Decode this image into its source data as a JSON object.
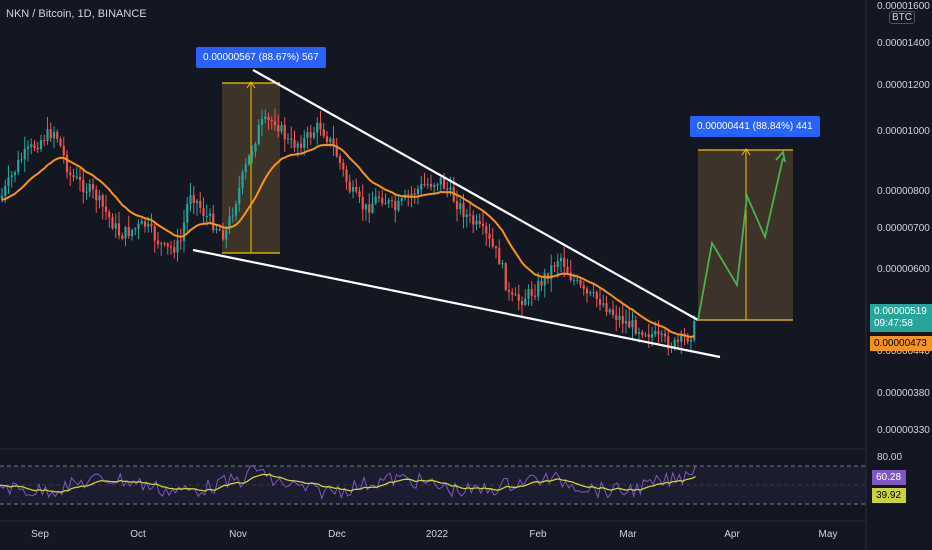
{
  "header": {
    "title": "NKN / Bitcoin, 1D, BINANCE",
    "unit_button": "BTC"
  },
  "price_axis": {
    "labels": [
      "0.00001600",
      "0.00001400",
      "0.00001200",
      "0.00001000",
      "0.00000800",
      "0.00000700",
      "0.00000600",
      "0.00000440",
      "0.00000380",
      "0.00000330"
    ]
  },
  "rsi_axis": {
    "labels": [
      "80.00"
    ]
  },
  "badges": {
    "last_price": "0.00000519",
    "countdown": "09:47:58",
    "ema_value": "0.00000473",
    "rsi_value": "60.28",
    "rsi_ma_value": "39.92"
  },
  "measurements": [
    {
      "text": "0.00000567 (88.67%) 567"
    },
    {
      "text": "0.00000441 (88.84%) 441"
    }
  ],
  "time_axis": {
    "labels": [
      "Sep",
      "Oct",
      "Nov",
      "Dec",
      "2022",
      "Feb",
      "Mar",
      "Apr",
      "May"
    ]
  },
  "colors": {
    "background": "#131722",
    "up": "#26a69a",
    "down": "#ef5350",
    "ema": "#f7931a",
    "trendline": "#ffffff",
    "projection": "#4caf50",
    "measure_box": "#2962ff",
    "rsi": "#7e57c2",
    "rsi_ma": "#c8d43a"
  }
}
